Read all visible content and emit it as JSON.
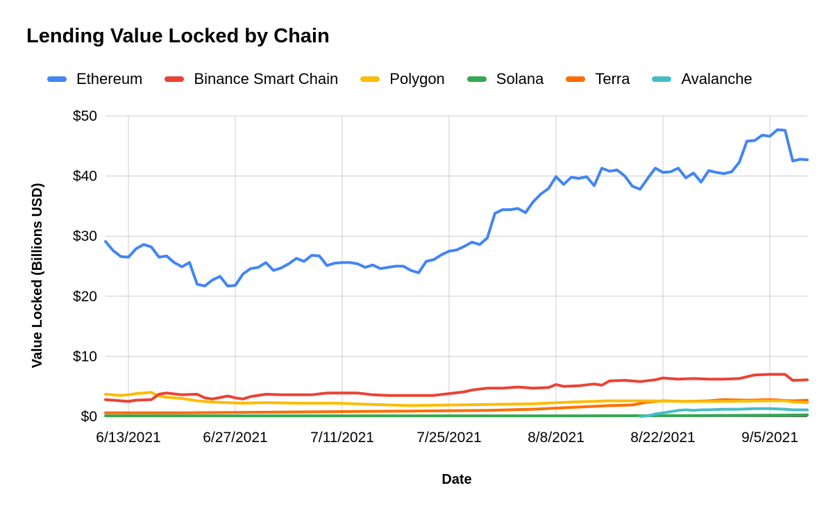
{
  "chart_data": {
    "type": "line",
    "title": "Lending Value Locked by Chain",
    "xlabel": "Date",
    "ylabel": "Value Locked (Billions USD)",
    "x_tick_labels": [
      "6/13/2021",
      "6/27/2021",
      "7/11/2021",
      "7/25/2021",
      "8/8/2021",
      "8/22/2021",
      "9/5/2021"
    ],
    "y_tick_labels": [
      "$0",
      "$10",
      "$20",
      "$30",
      "$40",
      "$50"
    ],
    "ylim": [
      0,
      50
    ],
    "x_range": [
      "2021-06-10",
      "2021-09-09"
    ],
    "grid": true,
    "legend_position": "top",
    "series": [
      {
        "name": "Ethereum",
        "color": "#4285F4",
        "points": [
          [
            "2021-06-10",
            29.1
          ],
          [
            "2021-06-11",
            27.6
          ],
          [
            "2021-06-12",
            26.6
          ],
          [
            "2021-06-13",
            26.5
          ],
          [
            "2021-06-14",
            27.9
          ],
          [
            "2021-06-15",
            28.6
          ],
          [
            "2021-06-16",
            28.2
          ],
          [
            "2021-06-17",
            26.5
          ],
          [
            "2021-06-18",
            26.7
          ],
          [
            "2021-06-19",
            25.6
          ],
          [
            "2021-06-20",
            24.9
          ],
          [
            "2021-06-21",
            25.6
          ],
          [
            "2021-06-22",
            22.0
          ],
          [
            "2021-06-23",
            21.7
          ],
          [
            "2021-06-24",
            22.7
          ],
          [
            "2021-06-25",
            23.3
          ],
          [
            "2021-06-26",
            21.7
          ],
          [
            "2021-06-27",
            21.8
          ],
          [
            "2021-06-28",
            23.7
          ],
          [
            "2021-06-29",
            24.6
          ],
          [
            "2021-06-30",
            24.8
          ],
          [
            "2021-07-01",
            25.6
          ],
          [
            "2021-07-02",
            24.3
          ],
          [
            "2021-07-03",
            24.7
          ],
          [
            "2021-07-04",
            25.4
          ],
          [
            "2021-07-05",
            26.3
          ],
          [
            "2021-07-06",
            25.8
          ],
          [
            "2021-07-07",
            26.8
          ],
          [
            "2021-07-08",
            26.7
          ],
          [
            "2021-07-09",
            25.1
          ],
          [
            "2021-07-10",
            25.5
          ],
          [
            "2021-07-11",
            25.6
          ],
          [
            "2021-07-12",
            25.6
          ],
          [
            "2021-07-13",
            25.4
          ],
          [
            "2021-07-14",
            24.8
          ],
          [
            "2021-07-15",
            25.2
          ],
          [
            "2021-07-16",
            24.6
          ],
          [
            "2021-07-17",
            24.8
          ],
          [
            "2021-07-18",
            25.0
          ],
          [
            "2021-07-19",
            25.0
          ],
          [
            "2021-07-20",
            24.3
          ],
          [
            "2021-07-21",
            23.9
          ],
          [
            "2021-07-22",
            25.8
          ],
          [
            "2021-07-23",
            26.1
          ],
          [
            "2021-07-24",
            26.9
          ],
          [
            "2021-07-25",
            27.5
          ],
          [
            "2021-07-26",
            27.7
          ],
          [
            "2021-07-27",
            28.3
          ],
          [
            "2021-07-28",
            29.0
          ],
          [
            "2021-07-29",
            28.6
          ],
          [
            "2021-07-30",
            29.7
          ],
          [
            "2021-07-31",
            33.8
          ],
          [
            "2021-08-01",
            34.4
          ],
          [
            "2021-08-02",
            34.4
          ],
          [
            "2021-08-03",
            34.6
          ],
          [
            "2021-08-04",
            33.9
          ],
          [
            "2021-08-05",
            35.7
          ],
          [
            "2021-08-06",
            37.0
          ],
          [
            "2021-08-07",
            37.9
          ],
          [
            "2021-08-08",
            39.9
          ],
          [
            "2021-08-09",
            38.6
          ],
          [
            "2021-08-10",
            39.8
          ],
          [
            "2021-08-11",
            39.6
          ],
          [
            "2021-08-12",
            39.9
          ],
          [
            "2021-08-13",
            38.4
          ],
          [
            "2021-08-14",
            41.3
          ],
          [
            "2021-08-15",
            40.8
          ],
          [
            "2021-08-16",
            41.0
          ],
          [
            "2021-08-17",
            40.0
          ],
          [
            "2021-08-18",
            38.3
          ],
          [
            "2021-08-19",
            37.8
          ],
          [
            "2021-08-20",
            39.6
          ],
          [
            "2021-08-21",
            41.3
          ],
          [
            "2021-08-22",
            40.6
          ],
          [
            "2021-08-23",
            40.7
          ],
          [
            "2021-08-24",
            41.3
          ],
          [
            "2021-08-25",
            39.7
          ],
          [
            "2021-08-26",
            40.5
          ],
          [
            "2021-08-27",
            39.0
          ],
          [
            "2021-08-28",
            40.9
          ],
          [
            "2021-08-29",
            40.6
          ],
          [
            "2021-08-30",
            40.4
          ],
          [
            "2021-08-31",
            40.7
          ],
          [
            "2021-09-01",
            42.3
          ],
          [
            "2021-09-02",
            45.8
          ],
          [
            "2021-09-03",
            45.9
          ],
          [
            "2021-09-04",
            46.8
          ],
          [
            "2021-09-05",
            46.6
          ],
          [
            "2021-09-06",
            47.7
          ],
          [
            "2021-09-07",
            47.6
          ],
          [
            "2021-09-08",
            42.5
          ],
          [
            "2021-09-09",
            42.8
          ],
          [
            "2021-09-10",
            42.7
          ]
        ]
      },
      {
        "name": "Binance Smart Chain",
        "color": "#EA4335",
        "points": [
          [
            "2021-06-10",
            2.8
          ],
          [
            "2021-06-12",
            2.6
          ],
          [
            "2021-06-13",
            2.5
          ],
          [
            "2021-06-14",
            2.7
          ],
          [
            "2021-06-16",
            2.8
          ],
          [
            "2021-06-17",
            3.7
          ],
          [
            "2021-06-18",
            3.9
          ],
          [
            "2021-06-20",
            3.6
          ],
          [
            "2021-06-22",
            3.7
          ],
          [
            "2021-06-23",
            3.1
          ],
          [
            "2021-06-24",
            2.9
          ],
          [
            "2021-06-26",
            3.4
          ],
          [
            "2021-06-27",
            3.1
          ],
          [
            "2021-06-28",
            2.9
          ],
          [
            "2021-06-29",
            3.3
          ],
          [
            "2021-07-01",
            3.7
          ],
          [
            "2021-07-03",
            3.6
          ],
          [
            "2021-07-05",
            3.6
          ],
          [
            "2021-07-07",
            3.6
          ],
          [
            "2021-07-09",
            3.9
          ],
          [
            "2021-07-11",
            3.9
          ],
          [
            "2021-07-13",
            3.9
          ],
          [
            "2021-07-15",
            3.6
          ],
          [
            "2021-07-17",
            3.5
          ],
          [
            "2021-07-19",
            3.5
          ],
          [
            "2021-07-21",
            3.5
          ],
          [
            "2021-07-23",
            3.5
          ],
          [
            "2021-07-25",
            3.8
          ],
          [
            "2021-07-27",
            4.1
          ],
          [
            "2021-07-28",
            4.4
          ],
          [
            "2021-07-30",
            4.7
          ],
          [
            "2021-08-01",
            4.7
          ],
          [
            "2021-08-03",
            4.9
          ],
          [
            "2021-08-05",
            4.7
          ],
          [
            "2021-08-07",
            4.8
          ],
          [
            "2021-08-08",
            5.3
          ],
          [
            "2021-08-09",
            5.0
          ],
          [
            "2021-08-11",
            5.1
          ],
          [
            "2021-08-13",
            5.4
          ],
          [
            "2021-08-14",
            5.2
          ],
          [
            "2021-08-15",
            5.9
          ],
          [
            "2021-08-17",
            6.0
          ],
          [
            "2021-08-19",
            5.8
          ],
          [
            "2021-08-21",
            6.1
          ],
          [
            "2021-08-22",
            6.4
          ],
          [
            "2021-08-24",
            6.2
          ],
          [
            "2021-08-26",
            6.3
          ],
          [
            "2021-08-28",
            6.2
          ],
          [
            "2021-08-30",
            6.2
          ],
          [
            "2021-09-01",
            6.3
          ],
          [
            "2021-09-03",
            6.9
          ],
          [
            "2021-09-05",
            7.0
          ],
          [
            "2021-09-07",
            7.0
          ],
          [
            "2021-09-08",
            6.0
          ],
          [
            "2021-09-10",
            6.1
          ]
        ]
      },
      {
        "name": "Polygon",
        "color": "#FBBC04",
        "points": [
          [
            "2021-06-10",
            3.7
          ],
          [
            "2021-06-12",
            3.5
          ],
          [
            "2021-06-13",
            3.6
          ],
          [
            "2021-06-14",
            3.8
          ],
          [
            "2021-06-16",
            4.0
          ],
          [
            "2021-06-17",
            3.4
          ],
          [
            "2021-06-18",
            3.2
          ],
          [
            "2021-06-20",
            3.0
          ],
          [
            "2021-06-22",
            2.6
          ],
          [
            "2021-06-24",
            2.4
          ],
          [
            "2021-06-26",
            2.3
          ],
          [
            "2021-06-28",
            2.2
          ],
          [
            "2021-07-01",
            2.3
          ],
          [
            "2021-07-05",
            2.2
          ],
          [
            "2021-07-10",
            2.2
          ],
          [
            "2021-07-15",
            2.0
          ],
          [
            "2021-07-20",
            1.8
          ],
          [
            "2021-07-25",
            1.9
          ],
          [
            "2021-07-30",
            2.0
          ],
          [
            "2021-08-05",
            2.1
          ],
          [
            "2021-08-10",
            2.4
          ],
          [
            "2021-08-15",
            2.6
          ],
          [
            "2021-08-20",
            2.6
          ],
          [
            "2021-08-25",
            2.5
          ],
          [
            "2021-08-30",
            2.5
          ],
          [
            "2021-09-05",
            2.6
          ],
          [
            "2021-09-07",
            2.6
          ],
          [
            "2021-09-08",
            2.4
          ],
          [
            "2021-09-10",
            2.3
          ]
        ]
      },
      {
        "name": "Solana",
        "color": "#34A853",
        "points": [
          [
            "2021-06-10",
            0.1
          ],
          [
            "2021-07-10",
            0.1
          ],
          [
            "2021-08-10",
            0.1
          ],
          [
            "2021-08-25",
            0.15
          ],
          [
            "2021-09-05",
            0.2
          ],
          [
            "2021-09-10",
            0.25
          ]
        ]
      },
      {
        "name": "Terra",
        "color": "#FF6D01",
        "points": [
          [
            "2021-06-10",
            0.6
          ],
          [
            "2021-06-20",
            0.6
          ],
          [
            "2021-07-01",
            0.7
          ],
          [
            "2021-07-10",
            0.8
          ],
          [
            "2021-07-20",
            0.9
          ],
          [
            "2021-07-30",
            1.0
          ],
          [
            "2021-08-05",
            1.2
          ],
          [
            "2021-08-10",
            1.5
          ],
          [
            "2021-08-15",
            1.8
          ],
          [
            "2021-08-18",
            1.9
          ],
          [
            "2021-08-20",
            2.4
          ],
          [
            "2021-08-22",
            2.6
          ],
          [
            "2021-08-25",
            2.5
          ],
          [
            "2021-08-28",
            2.6
          ],
          [
            "2021-08-30",
            2.8
          ],
          [
            "2021-09-02",
            2.7
          ],
          [
            "2021-09-05",
            2.8
          ],
          [
            "2021-09-08",
            2.6
          ],
          [
            "2021-09-10",
            2.7
          ]
        ]
      },
      {
        "name": "Avalanche",
        "color": "#46BDC6",
        "points": [
          [
            "2021-08-19",
            0.0
          ],
          [
            "2021-08-20",
            0.1
          ],
          [
            "2021-08-21",
            0.4
          ],
          [
            "2021-08-22",
            0.6
          ],
          [
            "2021-08-23",
            0.8
          ],
          [
            "2021-08-24",
            1.0
          ],
          [
            "2021-08-25",
            1.1
          ],
          [
            "2021-08-26",
            1.0
          ],
          [
            "2021-08-27",
            1.1
          ],
          [
            "2021-08-28",
            1.1
          ],
          [
            "2021-08-30",
            1.2
          ],
          [
            "2021-09-01",
            1.2
          ],
          [
            "2021-09-03",
            1.3
          ],
          [
            "2021-09-05",
            1.3
          ],
          [
            "2021-09-07",
            1.2
          ],
          [
            "2021-09-08",
            1.1
          ],
          [
            "2021-09-10",
            1.1
          ]
        ]
      }
    ]
  }
}
